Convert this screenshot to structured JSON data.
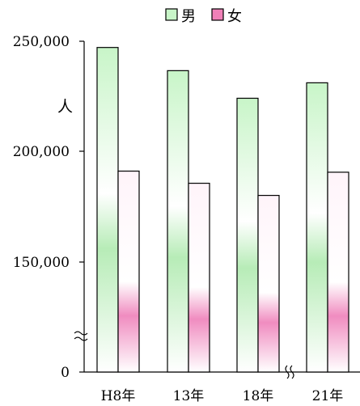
{
  "chart_data": {
    "type": "bar",
    "title": "",
    "ylabel": "人",
    "categories": [
      "H8年",
      "13年",
      "18年",
      "21年"
    ],
    "series": [
      {
        "name": "男",
        "values": [
          247000,
          236500,
          224000,
          231000
        ],
        "color": "#7ee07e",
        "color_top": "#c8f5c8"
      },
      {
        "name": "女",
        "values": [
          191000,
          185500,
          180000,
          190500
        ],
        "color": "#f080b8",
        "color_top": "#fff4fa"
      }
    ],
    "yticks": [
      "250,000",
      "200,000",
      "150,000",
      "0"
    ],
    "ylim_broken": [
      100000,
      250000
    ],
    "axis_break": true,
    "legend_position": "top",
    "grid": false
  }
}
